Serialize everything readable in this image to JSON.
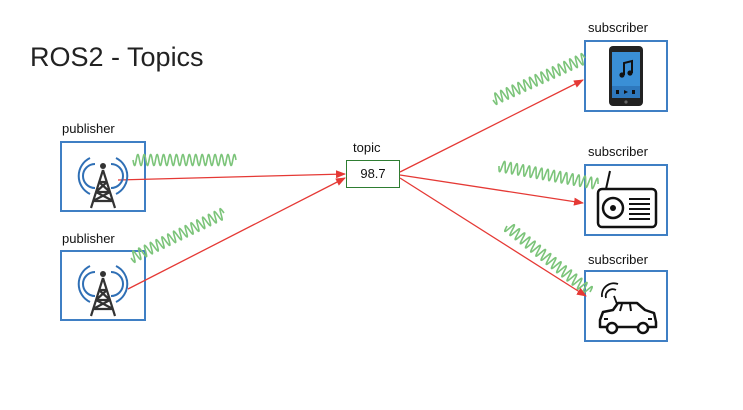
{
  "title": "ROS2 - Topics",
  "publishers": [
    {
      "label": "publisher",
      "icon": "radio-tower-icon"
    },
    {
      "label": "publisher",
      "icon": "radio-tower-icon"
    }
  ],
  "topic": {
    "label": "topic",
    "value": "98.7"
  },
  "subscribers": [
    {
      "label": "subscriber",
      "icon": "smartphone-music-icon"
    },
    {
      "label": "subscriber",
      "icon": "radio-icon"
    },
    {
      "label": "subscriber",
      "icon": "connected-car-icon"
    }
  ],
  "colors": {
    "box_border": "#3f7fc4",
    "arrow": "#e53935",
    "signal_wave": "#7cc47a",
    "topic_border": "#2e7d32",
    "tower_waves": "#2f6fb5"
  }
}
